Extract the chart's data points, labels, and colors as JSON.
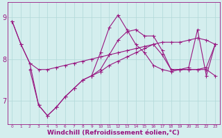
{
  "lines": [
    {
      "x": [
        0,
        1,
        2,
        3,
        4,
        5,
        6,
        7,
        8,
        9,
        10,
        11,
        12,
        13,
        14,
        15,
        16,
        17,
        18,
        19,
        20,
        21,
        22,
        23
      ],
      "y": [
        8.9,
        8.35,
        7.9,
        7.75,
        7.75,
        7.8,
        7.85,
        7.9,
        7.95,
        8.0,
        8.05,
        8.1,
        8.15,
        8.2,
        8.25,
        8.3,
        8.35,
        8.4,
        8.4,
        8.4,
        8.45,
        8.5,
        8.45,
        8.35
      ]
    },
    {
      "x": [
        0,
        1,
        2,
        3,
        4,
        5,
        6,
        7,
        8,
        9,
        10,
        11,
        12,
        13,
        14,
        15,
        16,
        17,
        18,
        19,
        20,
        21,
        22,
        23
      ],
      "y": [
        8.9,
        8.35,
        7.9,
        6.9,
        6.65,
        6.85,
        7.1,
        7.3,
        7.5,
        7.6,
        8.15,
        8.75,
        9.05,
        8.7,
        8.35,
        8.15,
        7.85,
        7.75,
        7.7,
        7.75,
        7.75,
        7.75,
        7.8,
        8.35
      ]
    },
    {
      "x": [
        2,
        3,
        4,
        5,
        6,
        7,
        8,
        9,
        10,
        11,
        12,
        13,
        14,
        15,
        16,
        17,
        18,
        19,
        20,
        21,
        22,
        23
      ],
      "y": [
        7.75,
        6.9,
        6.65,
        6.85,
        7.1,
        7.3,
        7.5,
        7.6,
        7.7,
        7.85,
        7.95,
        8.05,
        8.15,
        8.25,
        8.35,
        8.1,
        7.75,
        7.75,
        7.75,
        7.75,
        7.75,
        7.6
      ]
    },
    {
      "x": [
        9,
        10,
        11,
        12,
        13,
        14,
        15,
        16,
        17,
        18,
        19,
        20,
        21,
        22,
        23
      ],
      "y": [
        7.6,
        7.75,
        8.1,
        8.45,
        8.65,
        8.7,
        8.55,
        8.55,
        8.2,
        7.75,
        7.75,
        7.8,
        8.7,
        7.6,
        8.35
      ]
    }
  ],
  "color": "#971580",
  "bg_color": "#d4eeee",
  "grid_color": "#b0d8d8",
  "xlim": [
    -0.5,
    23.5
  ],
  "ylim": [
    6.45,
    9.35
  ],
  "yticks": [
    7,
    8,
    9
  ],
  "xticks": [
    0,
    1,
    2,
    3,
    4,
    5,
    6,
    7,
    8,
    9,
    10,
    11,
    12,
    13,
    14,
    15,
    16,
    17,
    18,
    19,
    20,
    21,
    22,
    23
  ],
  "xlabel": "Windchill (Refroidissement éolien,°C)",
  "xlabel_fontsize": 6.5,
  "ytick_fontsize": 7,
  "xtick_fontsize": 4.2
}
